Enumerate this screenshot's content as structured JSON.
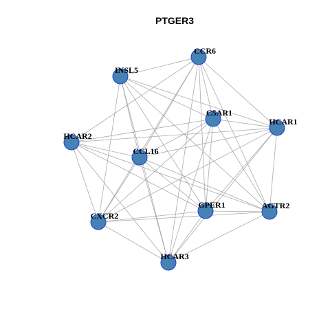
{
  "title": "PTGER3",
  "nodes": [
    {
      "label": "CCR6"
    },
    {
      "label": "INSL5"
    },
    {
      "label": "C5AR1"
    },
    {
      "label": "HCAR1"
    },
    {
      "label": "HCAR2"
    },
    {
      "label": "CCL16"
    },
    {
      "label": "GPER1"
    },
    {
      "label": "AGTR2"
    },
    {
      "label": "CXCR2"
    },
    {
      "label": "HCAR3"
    }
  ]
}
